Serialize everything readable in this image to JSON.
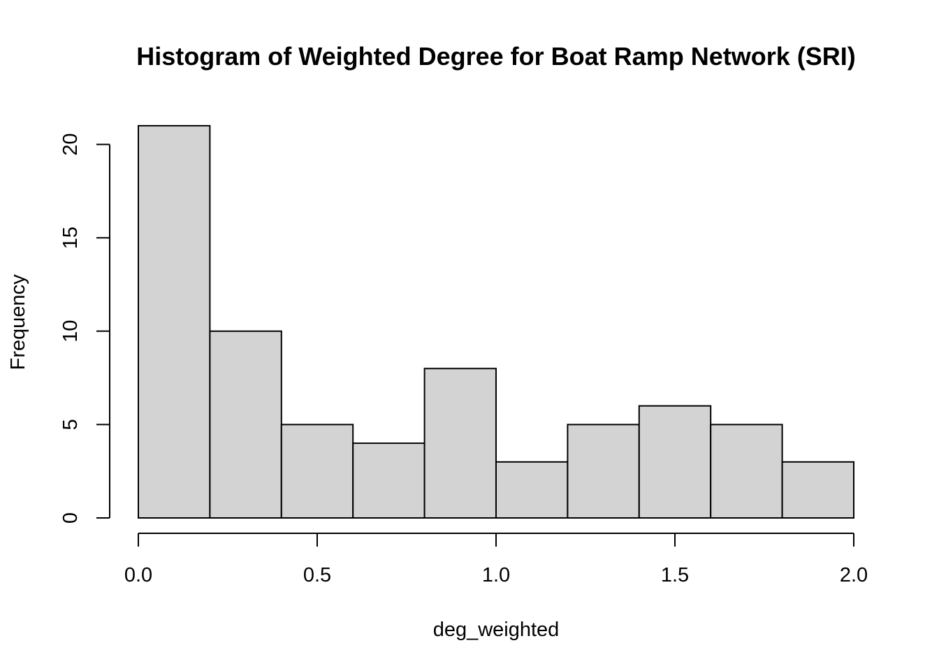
{
  "chart_data": {
    "type": "bar",
    "title": "Histogram of Weighted Degree for Boat Ramp Network (SRI)",
    "xlabel": "deg_weighted",
    "ylabel": "Frequency",
    "bin_edges": [
      0.0,
      0.2,
      0.4,
      0.6,
      0.8,
      1.0,
      1.2,
      1.4,
      1.6,
      1.8,
      2.0
    ],
    "values": [
      21,
      10,
      5,
      4,
      8,
      3,
      5,
      6,
      5,
      3
    ],
    "xlim": [
      0.0,
      2.0
    ],
    "ylim": [
      0,
      21
    ],
    "x_ticks": [
      "0.0",
      "0.5",
      "1.0",
      "1.5",
      "2.0"
    ],
    "y_ticks": [
      "0",
      "5",
      "10",
      "15",
      "20"
    ],
    "bar_color": "#d3d3d3",
    "grid": false,
    "legend": "none"
  }
}
